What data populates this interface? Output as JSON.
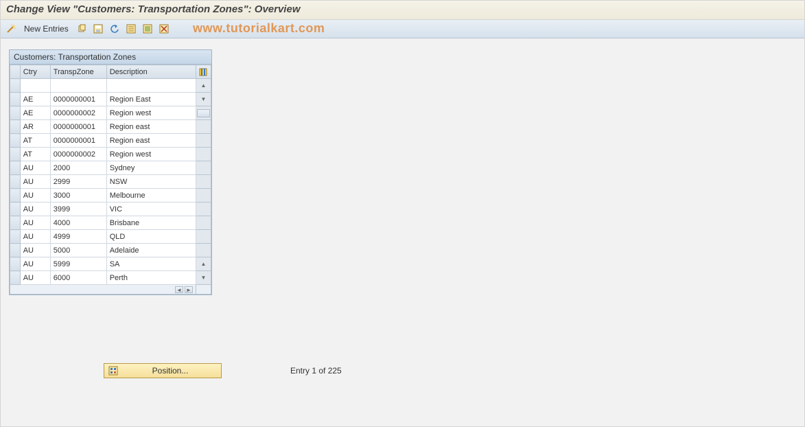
{
  "header": {
    "title": "Change View \"Customers: Transportation Zones\": Overview"
  },
  "watermark": "www.tutorialkart.com",
  "toolbar": {
    "new_entries_label": "New Entries",
    "icons": [
      "wand-icon",
      "copy-icon",
      "save-icon",
      "undo-icon",
      "select-icon",
      "select-all-icon",
      "deselect-icon"
    ]
  },
  "table": {
    "title": "Customers: Transportation Zones",
    "columns": {
      "ctry": "Ctry",
      "zone": "TranspZone",
      "desc": "Description"
    },
    "rows": [
      {
        "ctry": "",
        "zone": "",
        "desc": ""
      },
      {
        "ctry": "AE",
        "zone": "0000000001",
        "desc": "Region East"
      },
      {
        "ctry": "AE",
        "zone": "0000000002",
        "desc": "Region west"
      },
      {
        "ctry": "AR",
        "zone": "0000000001",
        "desc": "Region east"
      },
      {
        "ctry": "AT",
        "zone": "0000000001",
        "desc": "Region east"
      },
      {
        "ctry": "AT",
        "zone": "0000000002",
        "desc": "Region west"
      },
      {
        "ctry": "AU",
        "zone": "2000",
        "desc": "Sydney"
      },
      {
        "ctry": "AU",
        "zone": "2999",
        "desc": "NSW"
      },
      {
        "ctry": "AU",
        "zone": "3000",
        "desc": "Melbourne"
      },
      {
        "ctry": "AU",
        "zone": "3999",
        "desc": "VIC"
      },
      {
        "ctry": "AU",
        "zone": "4000",
        "desc": "Brisbane"
      },
      {
        "ctry": "AU",
        "zone": "4999",
        "desc": "QLD"
      },
      {
        "ctry": "AU",
        "zone": "5000",
        "desc": "Adelaide"
      },
      {
        "ctry": "AU",
        "zone": "5999",
        "desc": "SA"
      },
      {
        "ctry": "AU",
        "zone": "6000",
        "desc": "Perth"
      }
    ]
  },
  "footer": {
    "position_label": "Position...",
    "entry_text": "Entry 1 of 225"
  },
  "colors": {
    "header_bg": "#eeeadb",
    "toolbar_bg": "#d6e1ec",
    "panel_border": "#9fb5c9",
    "accent_button": "#f6df9a",
    "watermark": "#e28a3a"
  }
}
